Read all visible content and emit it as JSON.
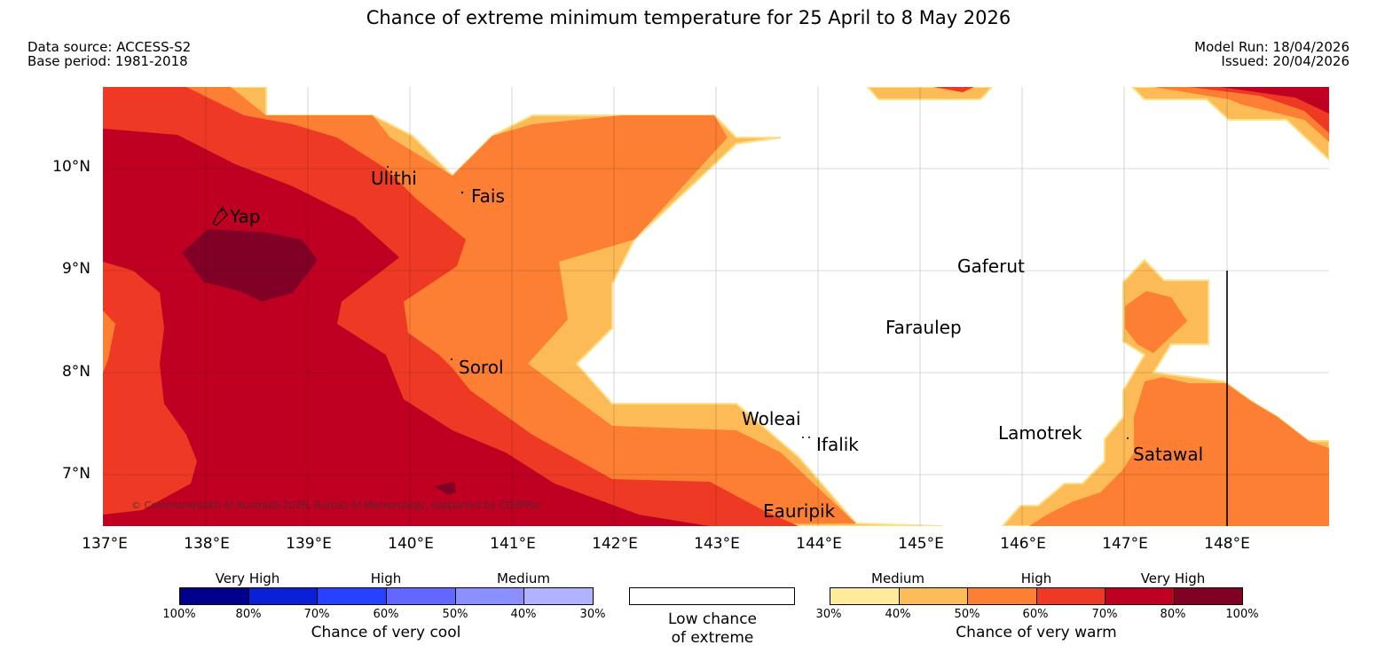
{
  "title": "Chance of extreme minimum temperature for 25 April to 8 May 2026",
  "meta": {
    "data_source": "Data source: ACCESS-S2",
    "base_period": "Base period: 1981-2018",
    "model_run": "Model Run: 18/04/2026",
    "issued": "Issued: 20/04/2026"
  },
  "axes": {
    "lat_labels": [
      "10°N",
      "9°N",
      "8°N",
      "7°N"
    ],
    "lon_labels": [
      "137°E",
      "138°E",
      "139°E",
      "140°E",
      "141°E",
      "142°E",
      "143°E",
      "144°E",
      "145°E",
      "146°E",
      "147°E",
      "148°E"
    ]
  },
  "places": {
    "ulithi": "Ulithi",
    "fais": "Fais",
    "yap": "Yap",
    "gaferut": "Gaferut",
    "faraulep": "Faraulep",
    "sorol": "Sorol",
    "woleai": "Woleai",
    "ifalik": "Ifalik",
    "lamotrek": "Lamotrek",
    "satawal": "Satawal",
    "eauripik": "Eauripik"
  },
  "copyright": "© Commonwealth of Australia 2026, Bureau of Meteorology, supported by COSPPac",
  "legend": {
    "cool": {
      "headings": [
        "Very High",
        "High",
        "Medium"
      ],
      "ticks": [
        "100%",
        "80%",
        "70%",
        "60%",
        "50%",
        "40%",
        "30%"
      ],
      "title": "Chance of very cool",
      "colors": [
        "#00008b",
        "#0a1fd6",
        "#2441ff",
        "#6467ff",
        "#8c8fff",
        "#b0b2ff"
      ]
    },
    "neutral": {
      "line1": "Low chance",
      "line2": "of extreme",
      "color": "#ffffff"
    },
    "warm": {
      "headings": [
        "Medium",
        "High",
        "Very High"
      ],
      "ticks": [
        "30%",
        "40%",
        "50%",
        "60%",
        "70%",
        "80%",
        "100%"
      ],
      "title": "Chance of very warm",
      "colors": [
        "#ffeb9a",
        "#fdbb58",
        "#fd7f33",
        "#ee3a24",
        "#bf0023",
        "#800026"
      ]
    }
  }
}
